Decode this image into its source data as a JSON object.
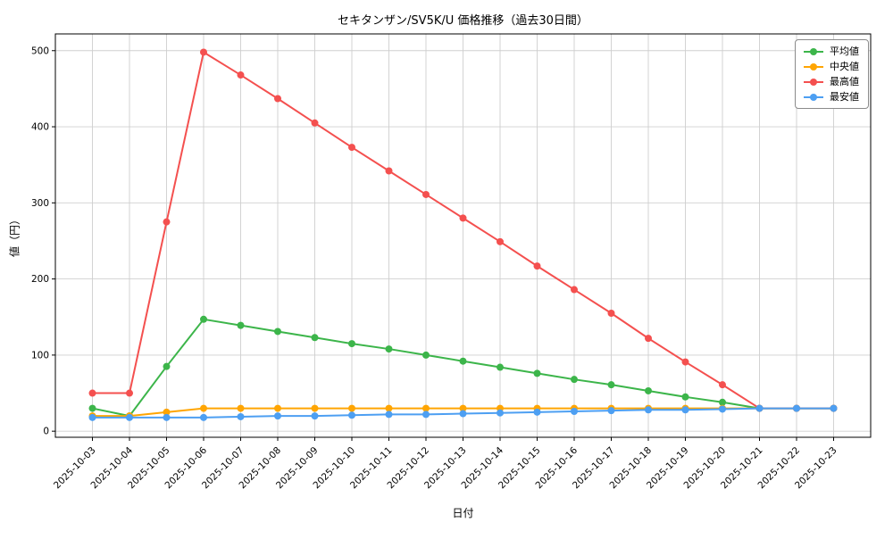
{
  "chart_data": {
    "type": "line",
    "title": "セキタンザン/SV5K/U 価格推移（過去30日間）",
    "xlabel": "日付",
    "ylabel": "値（円）",
    "grid": true,
    "legend_position": "upper right",
    "ylim": [
      0,
      500
    ],
    "yticks": [
      0,
      100,
      200,
      300,
      400,
      500
    ],
    "x": [
      "2025-10-03",
      "2025-10-04",
      "2025-10-05",
      "2025-10-06",
      "2025-10-07",
      "2025-10-08",
      "2025-10-09",
      "2025-10-10",
      "2025-10-11",
      "2025-10-12",
      "2025-10-13",
      "2025-10-14",
      "2025-10-15",
      "2025-10-16",
      "2025-10-17",
      "2025-10-18",
      "2025-10-19",
      "2025-10-20",
      "2025-10-21",
      "2025-10-22",
      "2025-10-23"
    ],
    "series": [
      {
        "name": "平均値",
        "color": "#3cb54a",
        "values": [
          30,
          20,
          85,
          147,
          139,
          131,
          123,
          115,
          108,
          100,
          92,
          84,
          76,
          68,
          61,
          53,
          45,
          38,
          30,
          30,
          30
        ]
      },
      {
        "name": "中央値",
        "color": "#ffa502",
        "values": [
          20,
          20,
          25,
          30,
          30,
          30,
          30,
          30,
          30,
          30,
          30,
          30,
          30,
          30,
          30,
          30,
          30,
          30,
          30,
          30,
          30
        ]
      },
      {
        "name": "最高値",
        "color": "#f4504f",
        "values": [
          50,
          50,
          275,
          498,
          468,
          437,
          405,
          373,
          342,
          311,
          280,
          249,
          217,
          186,
          155,
          122,
          91,
          61,
          30,
          30,
          30
        ]
      },
      {
        "name": "最安値",
        "color": "#4d9ff2",
        "values": [
          18,
          18,
          18,
          18,
          19,
          20,
          20,
          21,
          22,
          22,
          23,
          24,
          25,
          26,
          27,
          28,
          28,
          29,
          30,
          30,
          30
        ]
      }
    ]
  }
}
